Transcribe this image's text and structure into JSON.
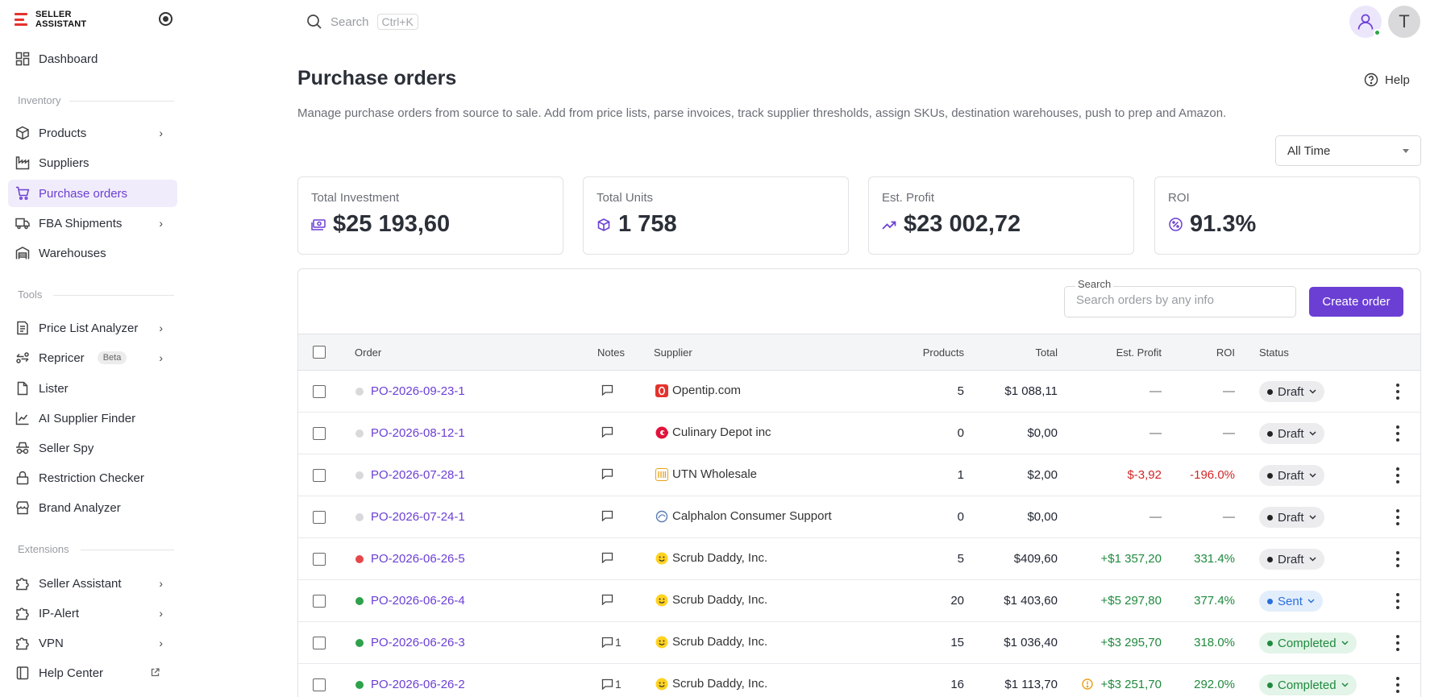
{
  "app": {
    "brand": "SELLER\nASSISTANT"
  },
  "topbar": {
    "search_placeholder": "Search",
    "search_shortcut": "Ctrl+K",
    "avatar_initial": "T"
  },
  "sidebar": {
    "dashboard": "Dashboard",
    "section_inventory": "Inventory",
    "products": "Products",
    "suppliers": "Suppliers",
    "purchase_orders": "Purchase orders",
    "fba_shipments": "FBA Shipments",
    "warehouses": "Warehouses",
    "section_tools": "Tools",
    "price_list_analyzer": "Price List Analyzer",
    "repricer": "Repricer",
    "repricer_badge": "Beta",
    "lister": "Lister",
    "ai_supplier_finder": "AI Supplier Finder",
    "seller_spy": "Seller Spy",
    "restriction_checker": "Restriction Checker",
    "brand_analyzer": "Brand Analyzer",
    "section_extensions": "Extensions",
    "seller_assistant": "Seller Assistant",
    "ip_alert": "IP-Alert",
    "vpn": "VPN",
    "help_center": "Help Center"
  },
  "header": {
    "title": "Purchase orders",
    "help": "Help",
    "description": "Manage purchase orders from source to sale. Add from price lists, parse invoices, track supplier thresholds, assign SKUs, destination warehouses, push to prep and Amazon.",
    "time_filter": "All Time"
  },
  "stats": {
    "investment": {
      "label": "Total Investment",
      "value": "$25 193,60"
    },
    "units": {
      "label": "Total Units",
      "value": "1 758"
    },
    "profit": {
      "label": "Est. Profit",
      "value": "$23 002,72"
    },
    "roi": {
      "label": "ROI",
      "value": "91.3%"
    }
  },
  "table": {
    "search_label": "Search",
    "search_placeholder": "Search orders by any info",
    "create_button": "Create order",
    "columns": {
      "order": "Order",
      "notes": "Notes",
      "supplier": "Supplier",
      "products": "Products",
      "total": "Total",
      "profit": "Est. Profit",
      "roi": "ROI",
      "status": "Status"
    },
    "rows": [
      {
        "order": "PO-2026-09-23-1",
        "dot": "#d9d9dc",
        "notes": "",
        "supplier": "Opentip.com",
        "logo": "opentip",
        "products": "5",
        "total": "$1 088,11",
        "profit": "—",
        "profit_class": "muted",
        "roi": "—",
        "roi_class": "muted",
        "status": "Draft",
        "status_class": "draft"
      },
      {
        "order": "PO-2026-08-12-1",
        "dot": "#d9d9dc",
        "notes": "",
        "supplier": "Culinary Depot inc",
        "logo": "culinary",
        "products": "0",
        "total": "$0,00",
        "profit": "—",
        "profit_class": "muted",
        "roi": "—",
        "roi_class": "muted",
        "status": "Draft",
        "status_class": "draft"
      },
      {
        "order": "PO-2026-07-28-1",
        "dot": "#d9d9dc",
        "notes": "",
        "supplier": "UTN Wholesale",
        "logo": "utn",
        "products": "1",
        "total": "$2,00",
        "profit": "$-3,92",
        "profit_class": "neg",
        "roi": "-196.0%",
        "roi_class": "neg",
        "status": "Draft",
        "status_class": "draft"
      },
      {
        "order": "PO-2026-07-24-1",
        "dot": "#d9d9dc",
        "notes": "",
        "supplier": "Calphalon Consumer Support",
        "logo": "calphalon",
        "products": "0",
        "total": "$0,00",
        "profit": "—",
        "profit_class": "muted",
        "roi": "—",
        "roi_class": "muted",
        "status": "Draft",
        "status_class": "draft"
      },
      {
        "order": "PO-2026-06-26-5",
        "dot": "#e54848",
        "notes": "",
        "supplier": "Scrub Daddy, Inc.",
        "logo": "scrub",
        "products": "5",
        "total": "$409,60",
        "profit": "+$1 357,20",
        "profit_class": "pos",
        "roi": "331.4%",
        "roi_class": "pos",
        "status": "Draft",
        "status_class": "draft"
      },
      {
        "order": "PO-2026-06-26-4",
        "dot": "#2ea24a",
        "notes": "",
        "supplier": "Scrub Daddy, Inc.",
        "logo": "scrub",
        "products": "20",
        "total": "$1 403,60",
        "profit": "+$5 297,80",
        "profit_class": "pos",
        "roi": "377.4%",
        "roi_class": "pos",
        "status": "Sent",
        "status_class": "sent"
      },
      {
        "order": "PO-2026-06-26-3",
        "dot": "#2ea24a",
        "notes": "1",
        "supplier": "Scrub Daddy, Inc.",
        "logo": "scrub",
        "products": "15",
        "total": "$1 036,40",
        "profit": "+$3 295,70",
        "profit_class": "pos",
        "roi": "318.0%",
        "roi_class": "pos",
        "status": "Completed",
        "status_class": "completed"
      },
      {
        "order": "PO-2026-06-26-2",
        "dot": "#2ea24a",
        "notes": "1",
        "supplier": "Scrub Daddy, Inc.",
        "logo": "scrub",
        "products": "16",
        "total": "$1 113,70",
        "profit": "+$3 251,70",
        "profit_class": "pos",
        "profit_warning": true,
        "roi": "292.0%",
        "roi_class": "pos",
        "status": "Completed",
        "status_class": "completed"
      }
    ]
  }
}
